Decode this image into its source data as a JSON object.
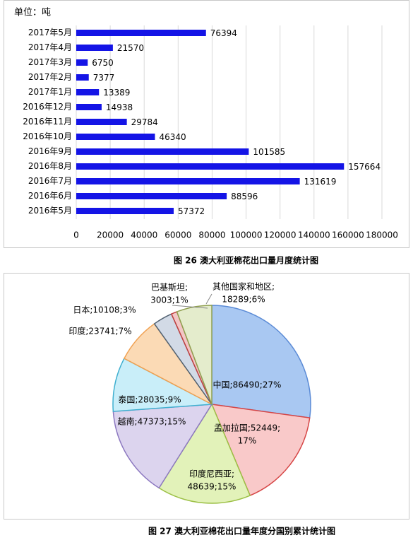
{
  "chart_data": [
    {
      "type": "bar",
      "orientation": "horizontal",
      "unit_label": "单位：吨",
      "categories": [
        "2017年5月",
        "2017年4月",
        "2017年3月",
        "2017年2月",
        "2017年1月",
        "2016年12月",
        "2016年11月",
        "2016年10月",
        "2016年9月",
        "2016年8月",
        "2016年7月",
        "2016年6月",
        "2016年5月"
      ],
      "values": [
        76394,
        21570,
        6750,
        7377,
        13389,
        14938,
        29784,
        46340,
        101585,
        157664,
        131619,
        88596,
        57372
      ],
      "color": "#1414e6",
      "xlim": [
        0,
        180000
      ],
      "xticks": [
        0,
        20000,
        40000,
        60000,
        80000,
        100000,
        120000,
        140000,
        160000,
        180000
      ],
      "grid": true,
      "caption": "图 26  澳大利亚棉花出口量月度统计图"
    },
    {
      "type": "pie",
      "categories": [
        "中国",
        "孟加拉国",
        "印度尼西亚",
        "越南",
        "泰国",
        "印度",
        "日本",
        "巴基斯坦",
        "其他国家和地区"
      ],
      "values": [
        86490,
        52449,
        48639,
        47373,
        28035,
        23741,
        10108,
        3003,
        18289
      ],
      "labels": [
        [
          "中国;86490;27%"
        ],
        [
          "孟加拉国;52449;",
          "17%"
        ],
        [
          "印度尼西亚;",
          "48639;15%"
        ],
        [
          "越南;47373;15%"
        ],
        [
          "泰国;28035;9%"
        ],
        [
          "印度;23741;7%"
        ],
        [
          "日本;10108;3%"
        ],
        [
          "巴基斯坦;",
          "3003;1%"
        ],
        [
          "其他国家和地区;",
          "18289;6%"
        ]
      ],
      "colors": [
        "#a9c8f2",
        "#f9c9c9",
        "#e2f2b9",
        "#dcd4ee",
        "#c9eef9",
        "#fbdab5",
        "#d2dae6",
        "#f2c6c6",
        "#e4eccc"
      ],
      "borders": [
        "#5b8bd6",
        "#d64545",
        "#9cc046",
        "#8c78c0",
        "#40b0d0",
        "#f0a050",
        "#506070",
        "#c04040",
        "#90a050"
      ],
      "caption": "图 27  澳大利亚棉花出口量年度分国别累计统计图"
    }
  ]
}
